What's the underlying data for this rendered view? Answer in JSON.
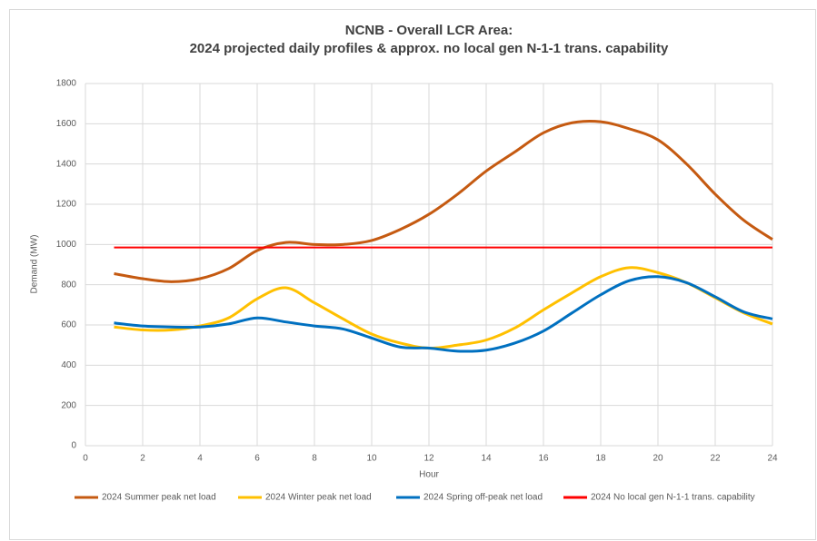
{
  "chart_data": {
    "type": "line",
    "title": "NCNB - Overall LCR Area:",
    "subtitle": "2024 projected daily profiles & approx. no local gen N-1-1 trans. capability",
    "x_label": "Hour",
    "y_label": "Demand (MW)",
    "x": [
      1,
      2,
      3,
      4,
      5,
      6,
      7,
      8,
      9,
      10,
      11,
      12,
      13,
      14,
      15,
      16,
      17,
      18,
      19,
      20,
      21,
      22,
      23,
      24
    ],
    "series": [
      {
        "name": "2024 Summer peak net load",
        "color": "#c55a11",
        "values": [
          855,
          830,
          815,
          830,
          880,
          970,
          1010,
          1000,
          1000,
          1020,
          1075,
          1150,
          1250,
          1365,
          1460,
          1555,
          1605,
          1610,
          1575,
          1520,
          1400,
          1250,
          1120,
          1025
        ]
      },
      {
        "name": "2024 Winter peak net load",
        "color": "#ffc000",
        "values": [
          590,
          575,
          575,
          595,
          635,
          730,
          785,
          710,
          630,
          555,
          510,
          485,
          500,
          525,
          585,
          675,
          760,
          840,
          885,
          860,
          810,
          735,
          660,
          605
        ]
      },
      {
        "name": "2024 Spring off-peak net load",
        "color": "#0070c0",
        "values": [
          610,
          595,
          590,
          590,
          605,
          635,
          615,
          595,
          580,
          535,
          490,
          485,
          470,
          475,
          510,
          570,
          660,
          750,
          820,
          840,
          810,
          740,
          665,
          630
        ]
      },
      {
        "name": "2024 No local gen N-1-1 trans. capability",
        "color": "#ff0000",
        "smooth": false,
        "values": [
          985,
          985,
          985,
          985,
          985,
          985,
          985,
          985,
          985,
          985,
          985,
          985,
          985,
          985,
          985,
          985,
          985,
          985,
          985,
          985,
          985,
          985,
          985,
          985
        ]
      }
    ],
    "xlim": [
      0,
      24
    ],
    "xticks": [
      0,
      2,
      4,
      6,
      8,
      10,
      12,
      14,
      16,
      18,
      20,
      22,
      24
    ],
    "ylim": [
      0,
      1800
    ],
    "yticks": [
      0,
      200,
      400,
      600,
      800,
      1000,
      1200,
      1400,
      1600,
      1800
    ],
    "grid": true,
    "legend": "bottom"
  }
}
